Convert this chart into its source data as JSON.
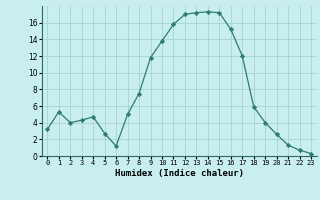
{
  "x": [
    0,
    1,
    2,
    3,
    4,
    5,
    6,
    7,
    8,
    9,
    10,
    11,
    12,
    13,
    14,
    15,
    16,
    17,
    18,
    19,
    20,
    21,
    22,
    23
  ],
  "y": [
    3.2,
    5.3,
    4.0,
    4.3,
    4.7,
    2.7,
    1.2,
    5.0,
    7.5,
    11.8,
    13.8,
    15.8,
    17.0,
    17.2,
    17.3,
    17.2,
    15.2,
    12.0,
    5.9,
    4.0,
    2.6,
    1.3,
    0.7,
    0.3
  ],
  "line_color": "#2e7d6e",
  "marker": "D",
  "marker_size": 2.2,
  "bg_color": "#c8eef0",
  "grid_major_color": "#a0cece",
  "grid_minor_color": "#b8dede",
  "xlabel": "Humidex (Indice chaleur)",
  "xlim": [
    -0.5,
    23.5
  ],
  "ylim": [
    0,
    18
  ],
  "yticks": [
    0,
    2,
    4,
    6,
    8,
    10,
    12,
    14,
    16
  ],
  "xticks": [
    0,
    1,
    2,
    3,
    4,
    5,
    6,
    7,
    8,
    9,
    10,
    11,
    12,
    13,
    14,
    15,
    16,
    17,
    18,
    19,
    20,
    21,
    22,
    23
  ]
}
